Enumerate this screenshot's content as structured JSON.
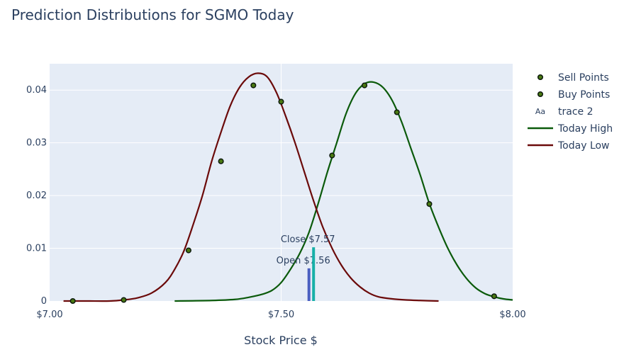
{
  "chart_data": {
    "type": "line",
    "title": "Prediction Distributions for SGMO Today",
    "xlabel": "Stock Price $",
    "ylabel": "",
    "xlim": [
      7.0,
      8.0
    ],
    "ylim": [
      0,
      0.045
    ],
    "x_ticks": [
      {
        "value": 7.0,
        "label": "$7.00"
      },
      {
        "value": 7.5,
        "label": "$7.50"
      },
      {
        "value": 8.0,
        "label": "$8.00"
      }
    ],
    "y_ticks": [
      {
        "value": 0,
        "label": "0"
      },
      {
        "value": 0.01,
        "label": "0.01"
      },
      {
        "value": 0.02,
        "label": "0.02"
      },
      {
        "value": 0.03,
        "label": "0.03"
      },
      {
        "value": 0.04,
        "label": "0.04"
      }
    ],
    "grid": true,
    "legend_position": "right",
    "legend": [
      {
        "name": "Sell Points",
        "kind": "marker"
      },
      {
        "name": "Buy Points",
        "kind": "marker"
      },
      {
        "name": "trace 2",
        "kind": "text"
      },
      {
        "name": "Today High",
        "kind": "line"
      },
      {
        "name": "Today Low",
        "kind": "line"
      }
    ],
    "series": [
      {
        "name": "Today High",
        "color": "#0b5a0b",
        "x": [
          7.27,
          7.35,
          7.4,
          7.43,
          7.46,
          7.48,
          7.5,
          7.52,
          7.54,
          7.56,
          7.58,
          7.6,
          7.62,
          7.64,
          7.66,
          7.68,
          7.7,
          7.72,
          7.74,
          7.76,
          7.78,
          7.8,
          7.82,
          7.84,
          7.86,
          7.88,
          7.9,
          7.92,
          7.94,
          7.96,
          7.98,
          8.0
        ],
        "y": [
          0,
          0.0001,
          0.0003,
          0.0007,
          0.0013,
          0.002,
          0.0035,
          0.006,
          0.009,
          0.013,
          0.0185,
          0.0245,
          0.03,
          0.0355,
          0.0393,
          0.0412,
          0.0415,
          0.0405,
          0.038,
          0.034,
          0.029,
          0.024,
          0.0185,
          0.014,
          0.01,
          0.0068,
          0.0043,
          0.0025,
          0.0014,
          0.0008,
          0.0004,
          0.0002
        ]
      },
      {
        "name": "Today Low",
        "color": "#6b0a0a",
        "x": [
          7.03,
          7.08,
          7.13,
          7.16,
          7.19,
          7.22,
          7.25,
          7.27,
          7.29,
          7.31,
          7.33,
          7.35,
          7.37,
          7.39,
          7.41,
          7.43,
          7.45,
          7.47,
          7.49,
          7.51,
          7.53,
          7.55,
          7.57,
          7.59,
          7.61,
          7.63,
          7.65,
          7.67,
          7.69,
          7.71,
          7.74,
          7.77,
          7.8,
          7.84
        ],
        "y": [
          0,
          0,
          0,
          0.0002,
          0.0006,
          0.0015,
          0.0035,
          0.006,
          0.0095,
          0.0145,
          0.02,
          0.0265,
          0.032,
          0.037,
          0.0405,
          0.0425,
          0.0432,
          0.0425,
          0.0395,
          0.035,
          0.03,
          0.0245,
          0.019,
          0.014,
          0.01,
          0.0068,
          0.0044,
          0.0027,
          0.0015,
          0.0008,
          0.0004,
          0.0002,
          0.0001,
          0
        ]
      }
    ],
    "sell_points": {
      "name": "Sell Points",
      "x": [
        7.68,
        7.75,
        7.82,
        7.96
      ],
      "y": [
        0.0409,
        0.0358,
        0.0184,
        0.0009
      ]
    },
    "buy_points": {
      "name": "Buy Points",
      "x": [
        7.05,
        7.16,
        7.3,
        7.37,
        7.44,
        7.5,
        7.61
      ],
      "y": [
        0,
        0.0002,
        0.0096,
        0.0265,
        0.0409,
        0.0378,
        0.0276
      ]
    },
    "markers": [
      {
        "label": "Open $7.56",
        "x": 7.56,
        "y": 0.0062,
        "color": "#4a5fc1"
      },
      {
        "label": "Close $7.57",
        "x": 7.57,
        "y": 0.0102,
        "color": "#17b0a8"
      }
    ]
  }
}
